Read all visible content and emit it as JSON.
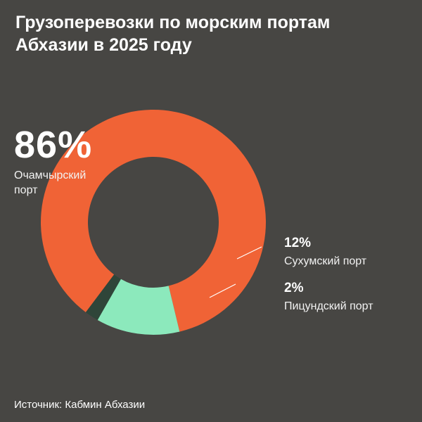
{
  "title": {
    "line1": "Грузоперевозки по морским портам",
    "line2": "Абхазии в 2025 году"
  },
  "chart_data": {
    "type": "pie",
    "variant": "donut",
    "categories": [
      "Очамчырский порт",
      "Сухумский порт",
      "Пицундский порт"
    ],
    "values": [
      86,
      12,
      2
    ],
    "labels": [
      "86%",
      "12%",
      "2%"
    ],
    "colors": [
      "#F06336",
      "#8CE9BC",
      "#2F4539"
    ]
  },
  "source": "Источник: Кабмин Абхазии",
  "colors": {
    "background": "#474643",
    "text": "#FFFFFF",
    "leader_line": "#FFFFFF"
  }
}
